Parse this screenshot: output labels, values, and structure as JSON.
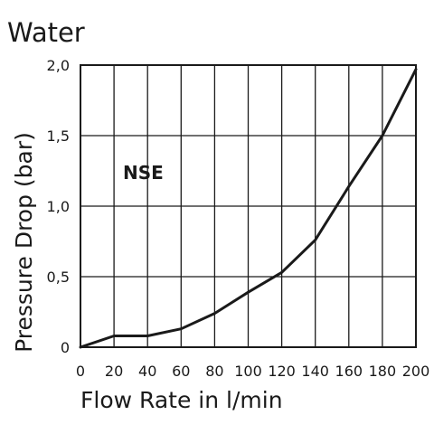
{
  "chart_data": {
    "type": "line",
    "title": "Water",
    "xlabel": "Flow Rate in l/min",
    "ylabel": "Pressure Drop (bar)",
    "xlim": [
      0,
      200
    ],
    "ylim": [
      0,
      2.0
    ],
    "x_ticks": [
      "0",
      "20",
      "40",
      "60",
      "80",
      "100",
      "120",
      "140",
      "160",
      "180",
      "200"
    ],
    "y_ticks": [
      {
        "value": 0,
        "label": "0"
      },
      {
        "value": 0.5,
        "label": "0,5"
      },
      {
        "value": 1.0,
        "label": "1,0"
      },
      {
        "value": 1.5,
        "label": "1,5"
      },
      {
        "value": 2.0,
        "label": "2,0"
      }
    ],
    "grid": true,
    "annotation": "NSE",
    "series": [
      {
        "name": "NSE",
        "x": [
          0,
          20,
          40,
          60,
          80,
          100,
          120,
          140,
          160,
          180,
          200
        ],
        "y": [
          0.0,
          0.08,
          0.08,
          0.13,
          0.24,
          0.39,
          0.53,
          0.76,
          1.14,
          1.5,
          1.97
        ]
      }
    ],
    "colors": {
      "line": "#1a1a1a",
      "grid": "#1a1a1a"
    }
  }
}
